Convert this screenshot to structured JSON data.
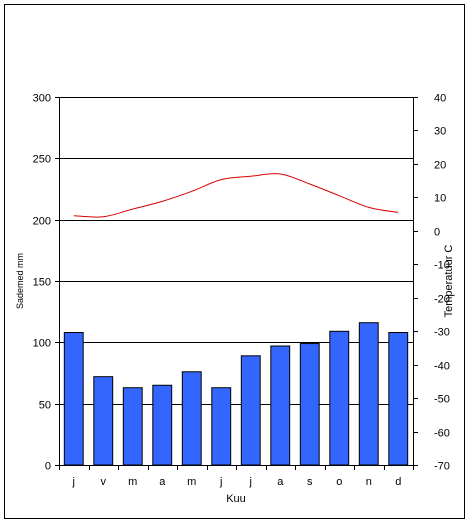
{
  "chart_data": {
    "type": "bar+line",
    "categories": [
      "j",
      "v",
      "m",
      "a",
      "m",
      "j",
      "j",
      "a",
      "s",
      "o",
      "n",
      "d"
    ],
    "series": [
      {
        "type": "bar",
        "axis": "left",
        "values": [
          108,
          72,
          63,
          65,
          76,
          63,
          89,
          97,
          99,
          109,
          116,
          108
        ],
        "color": "#3366ff"
      },
      {
        "type": "line",
        "axis": "right",
        "values": [
          4.5,
          4.2,
          6.5,
          8.8,
          11.8,
          15.3,
          16.3,
          17.0,
          14.0,
          10.5,
          7.0,
          5.5
        ],
        "color": "#d90000"
      }
    ],
    "xlabel": "Kuu",
    "ylabel_left": "Sademed mm",
    "ylabel_right": "Temperatuur C",
    "ylim_left": [
      0,
      300
    ],
    "ylim_right": [
      -70,
      40
    ],
    "yticks_left": [
      0,
      50,
      100,
      150,
      200,
      250,
      300
    ],
    "yticks_right": [
      -70,
      -60,
      -50,
      -40,
      -30,
      -20,
      -10,
      0,
      10,
      20,
      30,
      40
    ],
    "grid": "horizontal",
    "legend": "none"
  }
}
